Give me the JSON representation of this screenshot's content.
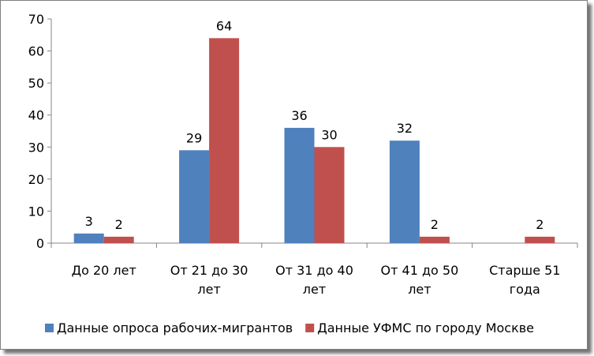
{
  "chart_data": {
    "type": "bar",
    "categories": [
      [
        "До 20 лет"
      ],
      [
        "От 21 до 30",
        "лет"
      ],
      [
        "От 31 до 40",
        "лет"
      ],
      [
        "От 41 до 50",
        "лет"
      ],
      [
        "Старше 51",
        "года"
      ]
    ],
    "series": [
      {
        "name": "Данные опроса рабочих-мигрантов",
        "color": "#4f81bd",
        "values": [
          3,
          29,
          36,
          32,
          null
        ]
      },
      {
        "name": "Данные УФМС по городу Москве",
        "color": "#c0504d",
        "values": [
          2,
          64,
          30,
          2,
          2
        ]
      }
    ],
    "title": "",
    "xlabel": "",
    "ylabel": "",
    "ylim": [
      0,
      70
    ],
    "yticks": [
      0,
      10,
      20,
      30,
      40,
      50,
      60,
      70
    ],
    "grid": false,
    "data_labels": true,
    "legend": "bottom"
  }
}
